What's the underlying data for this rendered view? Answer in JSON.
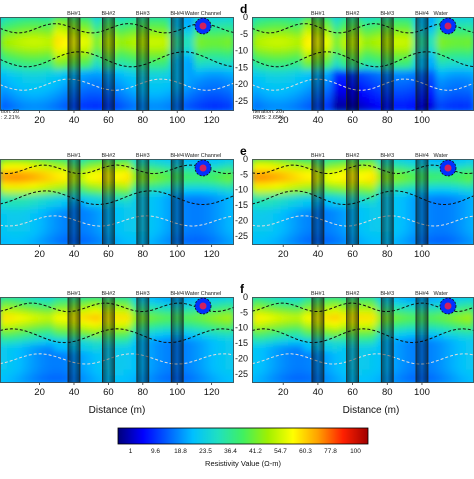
{
  "chart_data": {
    "type": "heatmap",
    "panels": [
      {
        "letter": "",
        "iteration_text": "tion: 20",
        "rms_text": ": 2.21%",
        "show_depth_ticks": false,
        "x_ticks": [
          20,
          40,
          60,
          80,
          100,
          120
        ],
        "x_start": -3
      },
      {
        "letter": "d",
        "iteration_text": "Iteration: 20",
        "rms_text": "RMS: 2.65%",
        "show_depth_ticks": true,
        "x_ticks": [
          20,
          40,
          60,
          80,
          100
        ],
        "x_start": 2
      },
      {
        "letter": "",
        "iteration_text": "",
        "rms_text": "",
        "show_depth_ticks": false,
        "x_ticks": [
          20,
          40,
          60,
          80,
          100,
          120
        ],
        "x_start": -3
      },
      {
        "letter": "e",
        "iteration_text": "",
        "rms_text": "",
        "show_depth_ticks": true,
        "x_ticks": [
          20,
          40,
          60,
          80,
          100
        ],
        "x_start": 2
      },
      {
        "letter": "",
        "iteration_text": "",
        "rms_text": "",
        "show_depth_ticks": false,
        "x_ticks": [
          20,
          40,
          60,
          80,
          100,
          120
        ],
        "x_start": -3
      },
      {
        "letter": "f",
        "iteration_text": "",
        "rms_text": "",
        "show_depth_ticks": true,
        "x_ticks": [
          20,
          40,
          60,
          80,
          100
        ],
        "x_start": 2
      }
    ],
    "boreholes": [
      {
        "label": "BH#1",
        "x": 40
      },
      {
        "label": "BH#2",
        "x": 60
      },
      {
        "label": "BH#3",
        "x": 80
      },
      {
        "label": "BH#4",
        "x": 100
      }
    ],
    "water_channel_label": "Water Channel",
    "water_channel_label_short": "Water",
    "water_channel_x": 115,
    "depth_ticks": [
      0,
      -5,
      -10,
      -15,
      -20,
      -25
    ],
    "xlabel": "Distance (m)",
    "colorbar": {
      "label": "Resistivity Value (Ω-m)",
      "ticks": [
        "1",
        "9.6",
        "18.8",
        "23.5",
        "36.4",
        "41.2",
        "54.7",
        "60.3",
        "77.8",
        "100"
      ],
      "colors": [
        "#00007a",
        "#0000ff",
        "#0060ff",
        "#00c0ff",
        "#20e0c0",
        "#40f060",
        "#a0f000",
        "#ffff00",
        "#ffa000",
        "#ff2000",
        "#a00000"
      ]
    }
  }
}
